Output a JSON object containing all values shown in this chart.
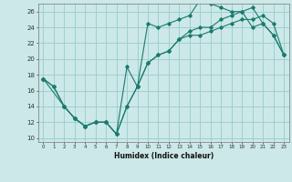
{
  "title": "",
  "xlabel": "Humidex (Indice chaleur)",
  "background_color": "#cce8e8",
  "grid_color": "#99cccc",
  "line_color": "#1a7a6e",
  "xlim": [
    -0.5,
    23.5
  ],
  "ylim": [
    9.5,
    27.0
  ],
  "xticks": [
    0,
    1,
    2,
    3,
    4,
    5,
    6,
    7,
    8,
    9,
    10,
    11,
    12,
    13,
    14,
    15,
    16,
    17,
    18,
    19,
    20,
    21,
    22,
    23
  ],
  "yticks": [
    10,
    12,
    14,
    16,
    18,
    20,
    22,
    24,
    26
  ],
  "line1_x": [
    0,
    1,
    2,
    3,
    4,
    5,
    6,
    7,
    8,
    9,
    10,
    11,
    12,
    13,
    14,
    15,
    16,
    17,
    18,
    19,
    20,
    21,
    22,
    23
  ],
  "line1_y": [
    17.5,
    16.5,
    14.0,
    12.5,
    11.5,
    12.0,
    12.0,
    10.5,
    19.0,
    16.5,
    24.5,
    24.0,
    24.5,
    25.0,
    25.5,
    27.5,
    27.0,
    26.5,
    26.0,
    26.0,
    24.0,
    24.5,
    23.0,
    20.5
  ],
  "line2_x": [
    0,
    2,
    3,
    4,
    5,
    6,
    7,
    8,
    9,
    10,
    11,
    12,
    13,
    14,
    15,
    16,
    17,
    18,
    19,
    20,
    21,
    22,
    23
  ],
  "line2_y": [
    17.5,
    14.0,
    12.5,
    11.5,
    12.0,
    12.0,
    10.5,
    14.0,
    16.5,
    19.5,
    20.5,
    21.0,
    22.5,
    23.0,
    23.0,
    23.5,
    24.0,
    24.5,
    25.0,
    25.0,
    25.5,
    24.5,
    20.5
  ],
  "line3_x": [
    0,
    1,
    2,
    3,
    4,
    5,
    6,
    7,
    8,
    9,
    10,
    11,
    12,
    13,
    14,
    15,
    16,
    17,
    18,
    19,
    20,
    21,
    22,
    23
  ],
  "line3_y": [
    17.5,
    16.5,
    14.0,
    12.5,
    11.5,
    12.0,
    12.0,
    10.5,
    14.0,
    16.5,
    19.5,
    20.5,
    21.0,
    22.5,
    23.5,
    24.0,
    24.0,
    25.0,
    25.5,
    26.0,
    26.5,
    24.5,
    23.0,
    20.5
  ]
}
